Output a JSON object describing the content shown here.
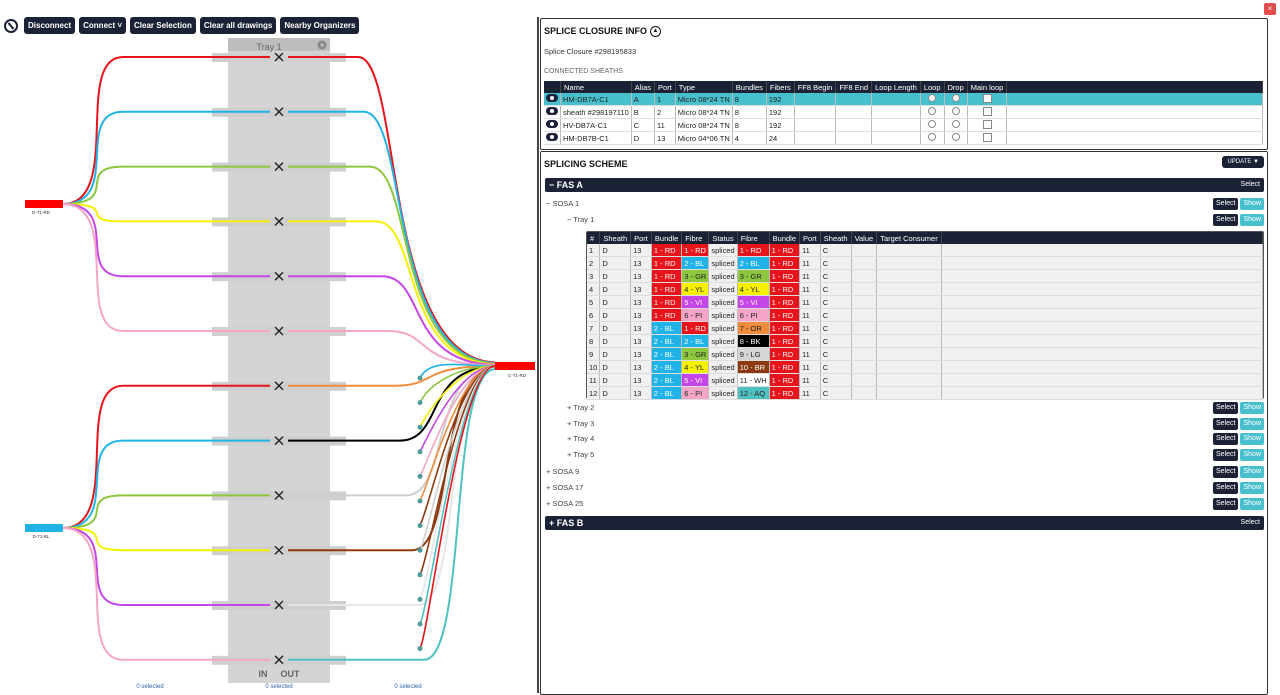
{
  "toolbar": {
    "disconnect": "Disconnect",
    "connect": "Connect",
    "clear_selection": "Clear Selection",
    "clear_drawings": "Clear all drawings",
    "nearby": "Nearby Organizers"
  },
  "diagram": {
    "tray_label": "Tray 1",
    "in_label": "IN",
    "out_label": "OUT",
    "left_top": {
      "label": "D-T1-RD",
      "color": "#ff0000"
    },
    "left_bottom": {
      "label": "D-T2-BL",
      "color": "#1fb3e8"
    },
    "right": {
      "label": "C-T1-RD",
      "color": "#ff0000"
    },
    "selected": [
      "0 selected",
      "0 selected",
      "0 selected"
    ],
    "fibre_colors": [
      "#e8141b",
      "#1fb3e8",
      "#8dc63f",
      "#f5f000",
      "#c546e8",
      "#f5a6c8",
      "#f08c3c",
      "#000000",
      "#cfcfcf",
      "#8b3a0f",
      "#e6e6e6",
      "#4fc1c1"
    ]
  },
  "info": {
    "title": "SPLICE CLOSURE INFO",
    "closure": "Splice Closure #298195833",
    "connected": "CONNECTED SHEATHS",
    "columns": [
      "",
      "Name",
      "Alias",
      "Port",
      "Type",
      "Bundles",
      "Fibers",
      "FF8 Begin",
      "FF8 End",
      "Loop Length",
      "Loop",
      "Drop",
      "Main loop"
    ],
    "rows": [
      {
        "name": "HM-DB7A-C1",
        "alias": "A",
        "port": "1",
        "type": "Micro 08*24 TN",
        "bundles": "8",
        "fibers": "192"
      },
      {
        "name": "sheath #298197110",
        "alias": "B",
        "port": "2",
        "type": "Micro 08*24 TN",
        "bundles": "8",
        "fibers": "192"
      },
      {
        "name": "HV-DB7A-C1",
        "alias": "C",
        "port": "11",
        "type": "Micro 08*24 TN",
        "bundles": "8",
        "fibers": "192"
      },
      {
        "name": "HM-DB7B-C1",
        "alias": "D",
        "port": "13",
        "type": "Micro 04*06 TN",
        "bundles": "4",
        "fibers": "24"
      }
    ]
  },
  "scheme": {
    "title": "SPLICING SCHEME",
    "update": "UPDATE",
    "fas_a": "FAS A",
    "fas_b": "FAS B",
    "select": "Select",
    "show": "Show",
    "sosa1": "SOSA 1",
    "tray1": "Tray 1",
    "trays": [
      "Tray 2",
      "Tray 3",
      "Tray 4",
      "Tray 5"
    ],
    "sosas": [
      "SOSA 9",
      "SOSA 17",
      "SOSA 25"
    ],
    "columns": [
      "#",
      "Sheath",
      "Port",
      "Bundle",
      "Fibre",
      "Status",
      "Fibre",
      "Bundle",
      "Port",
      "Sheath",
      "Value",
      "Target Consumer"
    ],
    "rows": [
      {
        "n": "1",
        "sheath": "D",
        "port": "13",
        "bundle": "1 - RD",
        "bc": "#e8141b",
        "fibre": "1 - RD",
        "fc": "#e8141b",
        "status": "spliced",
        "fibre2": "1 - RD",
        "fc2": "#e8141b",
        "bundle2": "1 - RD",
        "bc2": "#e8141b",
        "port2": "11",
        "sheath2": "C"
      },
      {
        "n": "2",
        "sheath": "D",
        "port": "13",
        "bundle": "1 - RD",
        "bc": "#e8141b",
        "fibre": "2 - BL",
        "fc": "#1fb3e8",
        "status": "spliced",
        "fibre2": "2 - BL",
        "fc2": "#1fb3e8",
        "bundle2": "1 - RD",
        "bc2": "#e8141b",
        "port2": "11",
        "sheath2": "C"
      },
      {
        "n": "3",
        "sheath": "D",
        "port": "13",
        "bundle": "1 - RD",
        "bc": "#e8141b",
        "fibre": "3 - GR",
        "fc": "#8dc63f",
        "status": "spliced",
        "fibre2": "3 - GR",
        "fc2": "#8dc63f",
        "bundle2": "1 - RD",
        "bc2": "#e8141b",
        "port2": "11",
        "sheath2": "C"
      },
      {
        "n": "4",
        "sheath": "D",
        "port": "13",
        "bundle": "1 - RD",
        "bc": "#e8141b",
        "fibre": "4 - YL",
        "fc": "#f5f000",
        "status": "spliced",
        "fibre2": "4 - YL",
        "fc2": "#f5f000",
        "bundle2": "1 - RD",
        "bc2": "#e8141b",
        "port2": "11",
        "sheath2": "C"
      },
      {
        "n": "5",
        "sheath": "D",
        "port": "13",
        "bundle": "1 - RD",
        "bc": "#e8141b",
        "fibre": "5 - VI",
        "fc": "#c546e8",
        "status": "spliced",
        "fibre2": "5 - VI",
        "fc2": "#c546e8",
        "bundle2": "1 - RD",
        "bc2": "#e8141b",
        "port2": "11",
        "sheath2": "C"
      },
      {
        "n": "6",
        "sheath": "D",
        "port": "13",
        "bundle": "1 - RD",
        "bc": "#e8141b",
        "fibre": "6 - PI",
        "fc": "#f5a6c8",
        "status": "spliced",
        "fibre2": "6 - PI",
        "fc2": "#f5a6c8",
        "bundle2": "1 - RD",
        "bc2": "#e8141b",
        "port2": "11",
        "sheath2": "C"
      },
      {
        "n": "7",
        "sheath": "D",
        "port": "13",
        "bundle": "2 - BL",
        "bc": "#1fb3e8",
        "fibre": "1 - RD",
        "fc": "#e8141b",
        "status": "spliced",
        "fibre2": "7 - OR",
        "fc2": "#f08c3c",
        "bundle2": "1 - RD",
        "bc2": "#e8141b",
        "port2": "11",
        "sheath2": "C"
      },
      {
        "n": "8",
        "sheath": "D",
        "port": "13",
        "bundle": "2 - BL",
        "bc": "#1fb3e8",
        "fibre": "2 - BL",
        "fc": "#1fb3e8",
        "status": "spliced",
        "fibre2": "8 - BK",
        "fc2": "#000000",
        "bundle2": "1 - RD",
        "bc2": "#e8141b",
        "port2": "11",
        "sheath2": "C"
      },
      {
        "n": "9",
        "sheath": "D",
        "port": "13",
        "bundle": "2 - BL",
        "bc": "#1fb3e8",
        "fibre": "3 - GR",
        "fc": "#8dc63f",
        "status": "spliced",
        "fibre2": "9 - LG",
        "fc2": "#d6d6d6",
        "bundle2": "1 - RD",
        "bc2": "#e8141b",
        "port2": "11",
        "sheath2": "C"
      },
      {
        "n": "10",
        "sheath": "D",
        "port": "13",
        "bundle": "2 - BL",
        "bc": "#1fb3e8",
        "fibre": "4 - YL",
        "fc": "#f5f000",
        "status": "spliced",
        "fibre2": "10 - BR",
        "fc2": "#8b3a0f",
        "bundle2": "1 - RD",
        "bc2": "#e8141b",
        "port2": "11",
        "sheath2": "C"
      },
      {
        "n": "11",
        "sheath": "D",
        "port": "13",
        "bundle": "2 - BL",
        "bc": "#1fb3e8",
        "fibre": "5 - VI",
        "fc": "#c546e8",
        "status": "spliced",
        "fibre2": "11 - WH",
        "fc2": "#ffffff",
        "bundle2": "1 - RD",
        "bc2": "#e8141b",
        "port2": "11",
        "sheath2": "C"
      },
      {
        "n": "12",
        "sheath": "D",
        "port": "13",
        "bundle": "2 - BL",
        "bc": "#1fb3e8",
        "fibre": "6 - PI",
        "fc": "#f5a6c8",
        "status": "spliced",
        "fibre2": "12 - AQ",
        "fc2": "#4fc1c1",
        "bundle2": "1 - RD",
        "bc2": "#e8141b",
        "port2": "11",
        "sheath2": "C"
      }
    ]
  }
}
